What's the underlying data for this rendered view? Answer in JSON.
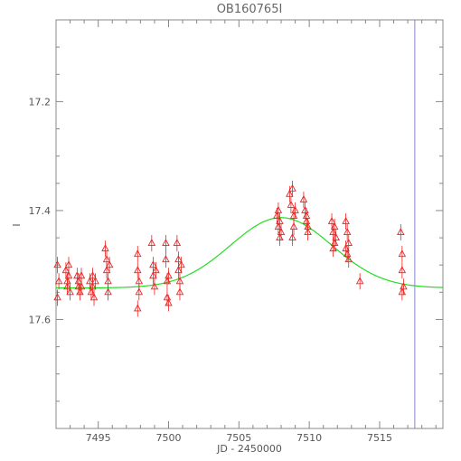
{
  "chart_data": {
    "type": "scatter",
    "title": "OB160765I",
    "xlabel": "JD - 2450000",
    "ylabel": "I",
    "xlim": [
      7492,
      7519.5
    ],
    "ylim": [
      17.8,
      17.05
    ],
    "y_inverted": true,
    "x_ticks": [
      7495,
      7500,
      7505,
      7510,
      7515
    ],
    "y_ticks": [
      17.2,
      17.4,
      17.6
    ],
    "x_tick_labels": [
      "7495",
      "7500",
      "7505",
      "7510",
      "7515"
    ],
    "y_tick_labels": [
      "17.2",
      "17.4",
      "17.6"
    ],
    "grid": false,
    "vertical_line": {
      "x": 7517.5,
      "color": "#8888cc"
    },
    "series": [
      {
        "kind": "points",
        "color": "#ee2222",
        "marker": "triangle",
        "error": 0.015,
        "points": [
          [
            7492.1,
            17.5
          ],
          [
            7492.2,
            17.53
          ],
          [
            7492.1,
            17.56
          ],
          [
            7492.7,
            17.51
          ],
          [
            7492.8,
            17.53
          ],
          [
            7492.8,
            17.54
          ],
          [
            7492.9,
            17.5
          ],
          [
            7492.9,
            17.52
          ],
          [
            7493.0,
            17.55
          ],
          [
            7493.5,
            17.52
          ],
          [
            7493.6,
            17.54
          ],
          [
            7493.6,
            17.53
          ],
          [
            7493.7,
            17.55
          ],
          [
            7493.8,
            17.52
          ],
          [
            7493.8,
            17.54
          ],
          [
            7494.4,
            17.53
          ],
          [
            7494.5,
            17.55
          ],
          [
            7494.6,
            17.54
          ],
          [
            7494.6,
            17.52
          ],
          [
            7494.7,
            17.56
          ],
          [
            7494.8,
            17.53
          ],
          [
            7495.5,
            17.47
          ],
          [
            7495.6,
            17.49
          ],
          [
            7495.6,
            17.51
          ],
          [
            7495.7,
            17.53
          ],
          [
            7495.7,
            17.55
          ],
          [
            7495.8,
            17.5
          ],
          [
            7497.8,
            17.48
          ],
          [
            7497.8,
            17.51
          ],
          [
            7497.9,
            17.53
          ],
          [
            7497.9,
            17.55
          ],
          [
            7497.8,
            17.58
          ],
          [
            7498.8,
            17.46
          ],
          [
            7498.9,
            17.5
          ],
          [
            7498.9,
            17.52
          ],
          [
            7499.0,
            17.54
          ],
          [
            7499.1,
            17.51
          ],
          [
            7499.8,
            17.46
          ],
          [
            7499.8,
            17.49
          ],
          [
            7499.9,
            17.53
          ],
          [
            7499.9,
            17.56
          ],
          [
            7500.0,
            17.52
          ],
          [
            7500.0,
            17.57
          ],
          [
            7500.6,
            17.46
          ],
          [
            7500.7,
            17.49
          ],
          [
            7500.7,
            17.51
          ],
          [
            7500.8,
            17.53
          ],
          [
            7500.8,
            17.55
          ],
          [
            7500.9,
            17.5
          ],
          [
            7507.7,
            17.41
          ],
          [
            7507.8,
            17.43
          ],
          [
            7507.9,
            17.45
          ],
          [
            7507.8,
            17.4
          ],
          [
            7507.9,
            17.42
          ],
          [
            7508.0,
            17.44
          ],
          [
            7508.6,
            17.37
          ],
          [
            7508.7,
            17.39
          ],
          [
            7508.8,
            17.36
          ],
          [
            7508.9,
            17.41
          ],
          [
            7508.9,
            17.43
          ],
          [
            7509.0,
            17.4
          ],
          [
            7508.8,
            17.45
          ],
          [
            7509.6,
            17.38
          ],
          [
            7509.7,
            17.4
          ],
          [
            7509.8,
            17.42
          ],
          [
            7509.9,
            17.44
          ],
          [
            7509.8,
            17.41
          ],
          [
            7509.9,
            17.43
          ],
          [
            7511.6,
            17.42
          ],
          [
            7511.7,
            17.44
          ],
          [
            7511.8,
            17.46
          ],
          [
            7511.8,
            17.43
          ],
          [
            7511.9,
            17.45
          ],
          [
            7511.7,
            17.47
          ],
          [
            7512.6,
            17.42
          ],
          [
            7512.7,
            17.44
          ],
          [
            7512.8,
            17.46
          ],
          [
            7512.7,
            17.48
          ],
          [
            7512.8,
            17.49
          ],
          [
            7512.6,
            17.47
          ],
          [
            7513.6,
            17.53
          ],
          [
            7516.5,
            17.44
          ],
          [
            7516.6,
            17.48
          ],
          [
            7516.6,
            17.51
          ],
          [
            7516.7,
            17.54
          ],
          [
            7516.6,
            17.55
          ]
        ]
      },
      {
        "kind": "model",
        "color": "#22dd22",
        "t0": 7508.0,
        "baseline": 17.542,
        "peak": 17.413,
        "width": 3.6
      }
    ]
  }
}
